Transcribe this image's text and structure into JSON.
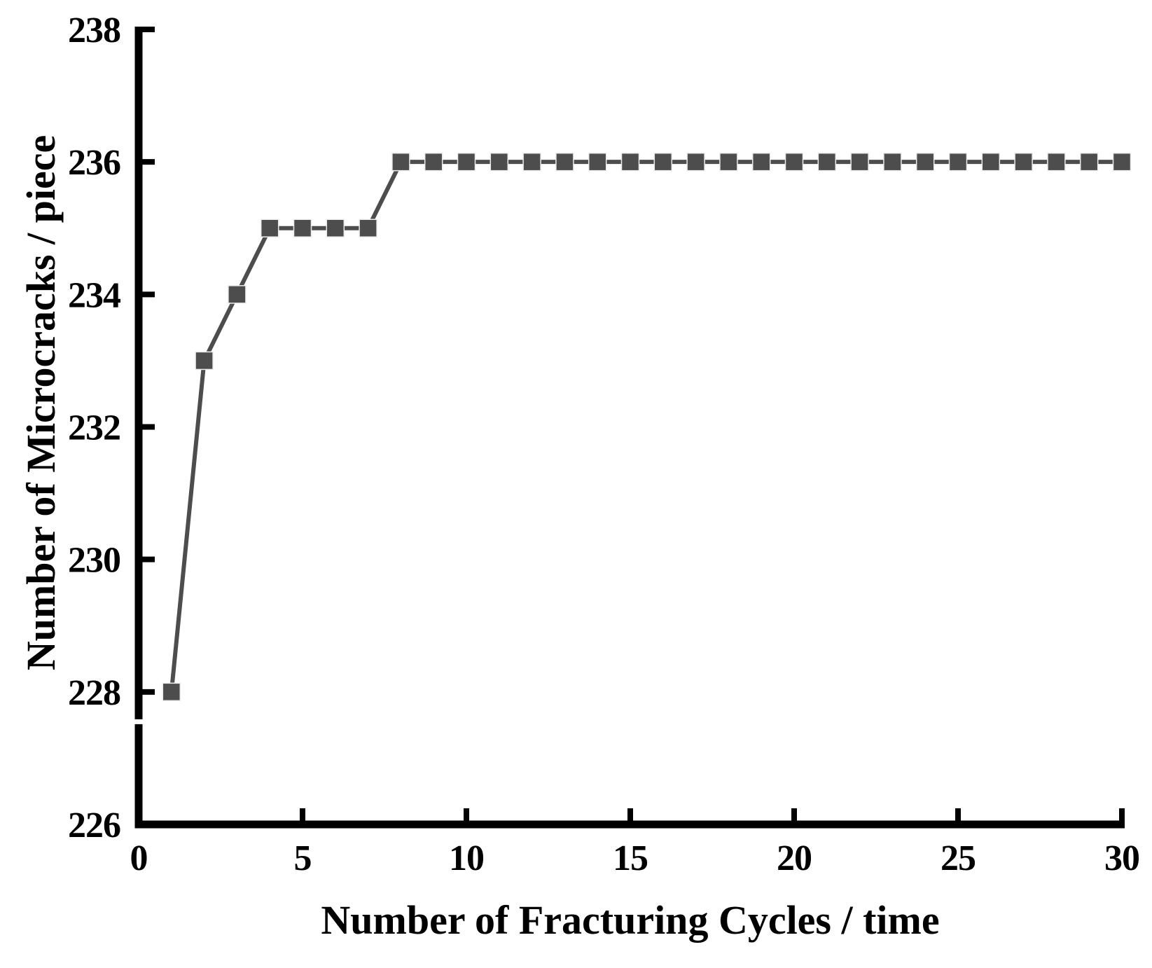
{
  "figure": {
    "background": "#ffffff"
  },
  "chart_data": {
    "type": "line",
    "title": "",
    "xlabel": "Number of Fracturing Cycles / time",
    "ylabel": "Number of Microcracks / piece",
    "x": [
      1,
      2,
      3,
      4,
      5,
      6,
      7,
      8,
      9,
      10,
      11,
      12,
      13,
      14,
      15,
      16,
      17,
      18,
      19,
      20,
      21,
      22,
      23,
      24,
      25,
      26,
      27,
      28,
      29,
      30
    ],
    "y": [
      228,
      233,
      234,
      235,
      235,
      235,
      235,
      236,
      236,
      236,
      236,
      236,
      236,
      236,
      236,
      236,
      236,
      236,
      236,
      236,
      236,
      236,
      236,
      236,
      236,
      236,
      236,
      236,
      236,
      236
    ],
    "xlim": [
      0,
      30
    ],
    "ylim": [
      226,
      238
    ],
    "x_ticks": [
      0,
      5,
      10,
      15,
      20,
      25,
      30
    ],
    "y_ticks": [
      226,
      228,
      230,
      232,
      234,
      236,
      238
    ],
    "grid": false,
    "legend": "none",
    "marker": "square",
    "line_style": "solid",
    "colors": {
      "series": "#4d4d4d",
      "marker_edge": "#ececec",
      "axis": "#000000",
      "background": "#ffffff"
    },
    "y_axis_break": {
      "between": [
        226,
        228
      ],
      "at": 227.55
    }
  }
}
